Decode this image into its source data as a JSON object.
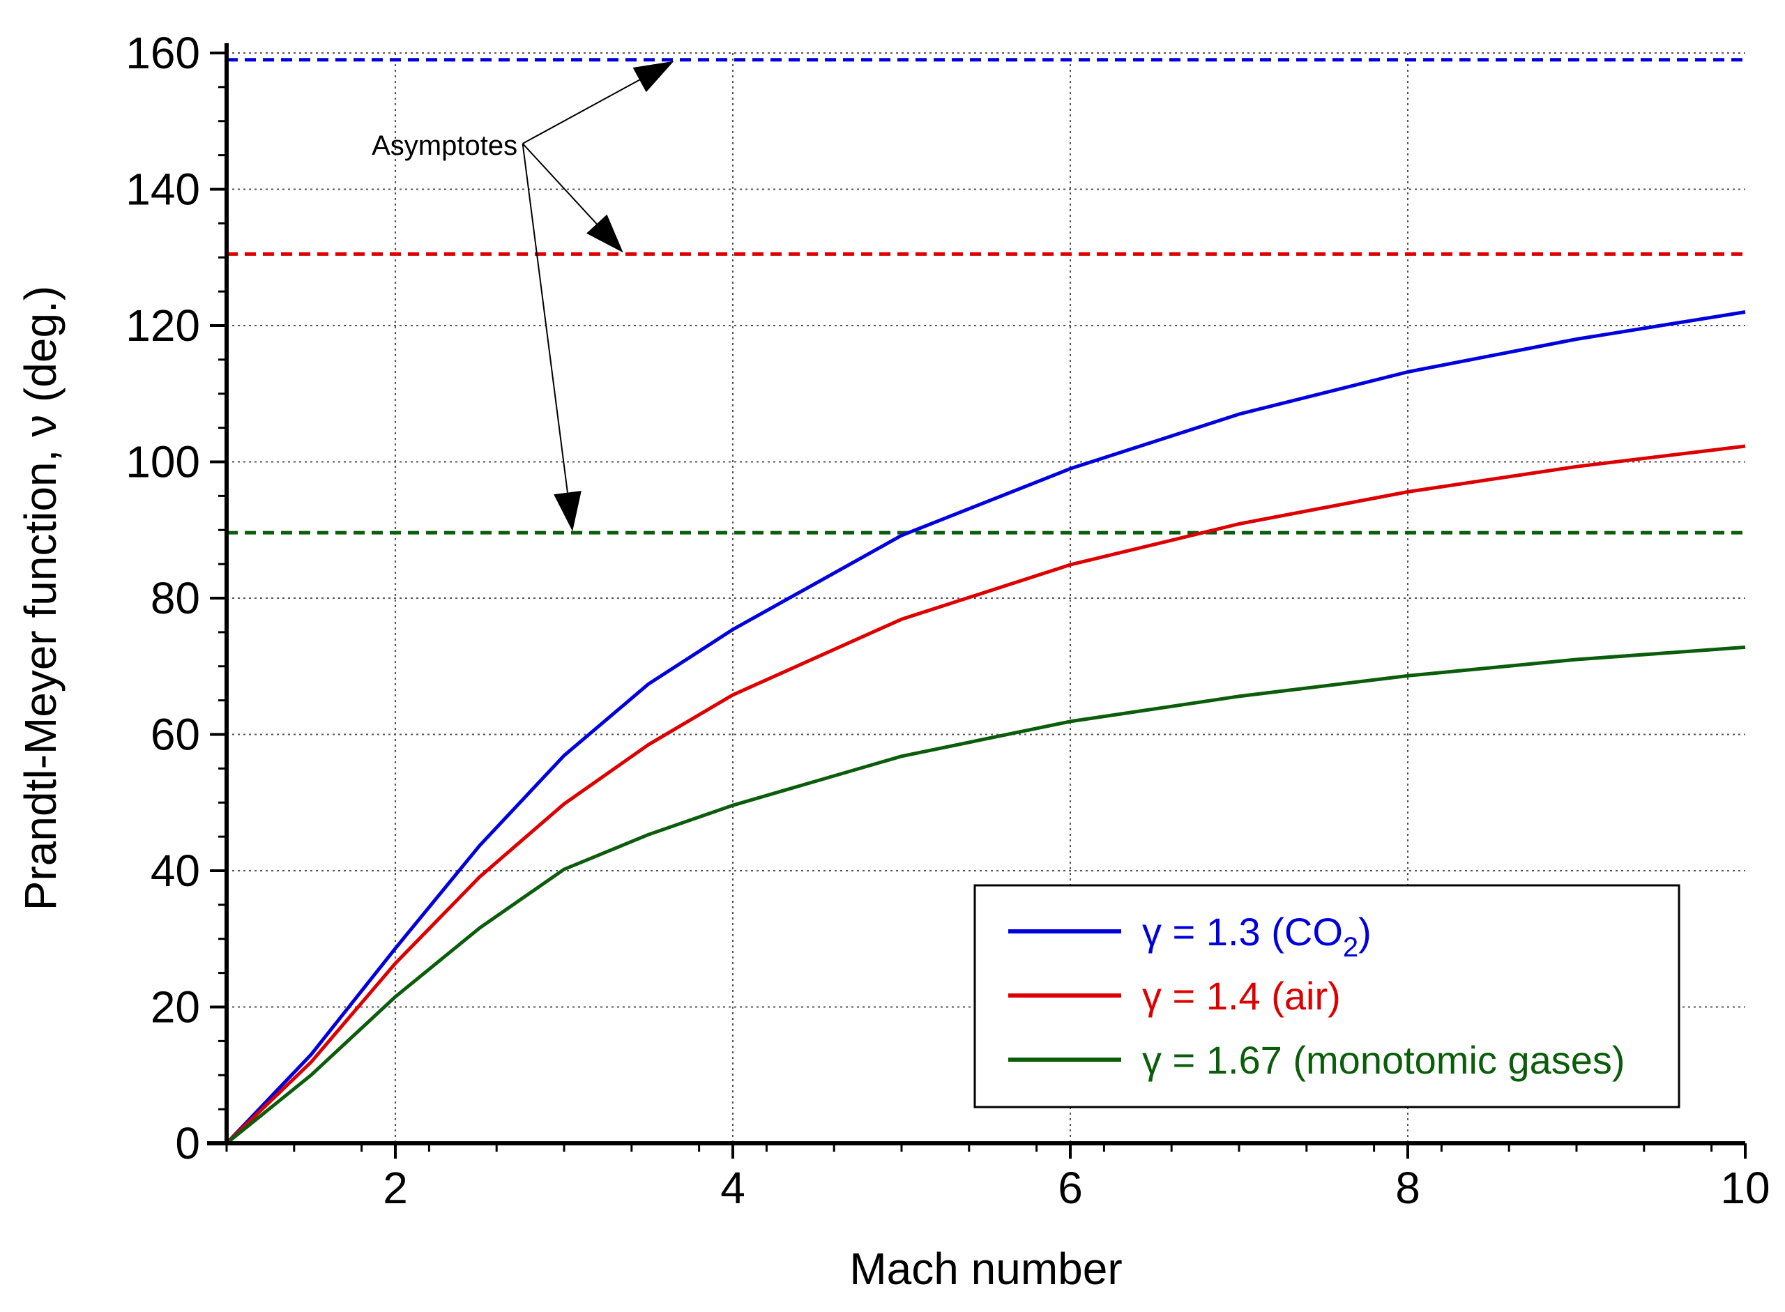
{
  "chart_data": {
    "type": "line",
    "xlabel": "Mach number",
    "ylabel": "Prandtl-Meyer function, ν (deg.)",
    "xlim": [
      1,
      10
    ],
    "ylim": [
      0,
      160
    ],
    "xticks": [
      2,
      4,
      6,
      8,
      10
    ],
    "yticks": [
      0,
      20,
      40,
      60,
      80,
      100,
      120,
      140,
      160
    ],
    "xtick_labels": [
      "2",
      "4",
      "6",
      "8",
      "10"
    ],
    "ytick_labels": [
      "0",
      "20",
      "40",
      "60",
      "80",
      "100",
      "120",
      "140",
      "160"
    ],
    "grid": true,
    "legend_position": "bottom-right",
    "series": [
      {
        "name": "γ = 1.3 (CO",
        "name_subscript": "2",
        "name_suffix": ")",
        "gamma": 1.3,
        "color": "#0000dd",
        "x": [
          1.0,
          1.5,
          2.0,
          2.5,
          3.0,
          3.5,
          4.0,
          5.0,
          6.0,
          7.0,
          8.0,
          9.0,
          10.0
        ],
        "y": [
          0.0,
          13.0,
          28.6,
          43.7,
          56.9,
          67.4,
          75.4,
          89.2,
          99.0,
          107.0,
          113.2,
          118.0,
          122.0
        ],
        "asymptote": 159.0
      },
      {
        "name": "γ = 1.4 (air)",
        "gamma": 1.4,
        "color": "#dd0000",
        "x": [
          1.0,
          1.5,
          2.0,
          2.5,
          3.0,
          3.5,
          4.0,
          5.0,
          6.0,
          7.0,
          8.0,
          9.0,
          10.0
        ],
        "y": [
          0.0,
          11.9,
          26.4,
          39.1,
          49.8,
          58.5,
          65.8,
          76.9,
          84.9,
          90.9,
          95.6,
          99.3,
          102.3
        ],
        "asymptote": 130.5
      },
      {
        "name": "γ = 1.67 (monotomic gases)",
        "gamma": 1.67,
        "color": "#0b5c0b",
        "x": [
          1.0,
          1.5,
          2.0,
          2.5,
          3.0,
          3.5,
          4.0,
          5.0,
          6.0,
          7.0,
          8.0,
          9.0,
          10.0
        ],
        "y": [
          0.0,
          10.0,
          21.5,
          31.6,
          40.2,
          45.3,
          49.6,
          56.8,
          61.9,
          65.6,
          68.6,
          71.0,
          72.8
        ],
        "asymptote": 89.6
      }
    ],
    "annotations": [
      {
        "text": "Asymptotes",
        "x": 2.3,
        "y": 146.5
      }
    ]
  }
}
